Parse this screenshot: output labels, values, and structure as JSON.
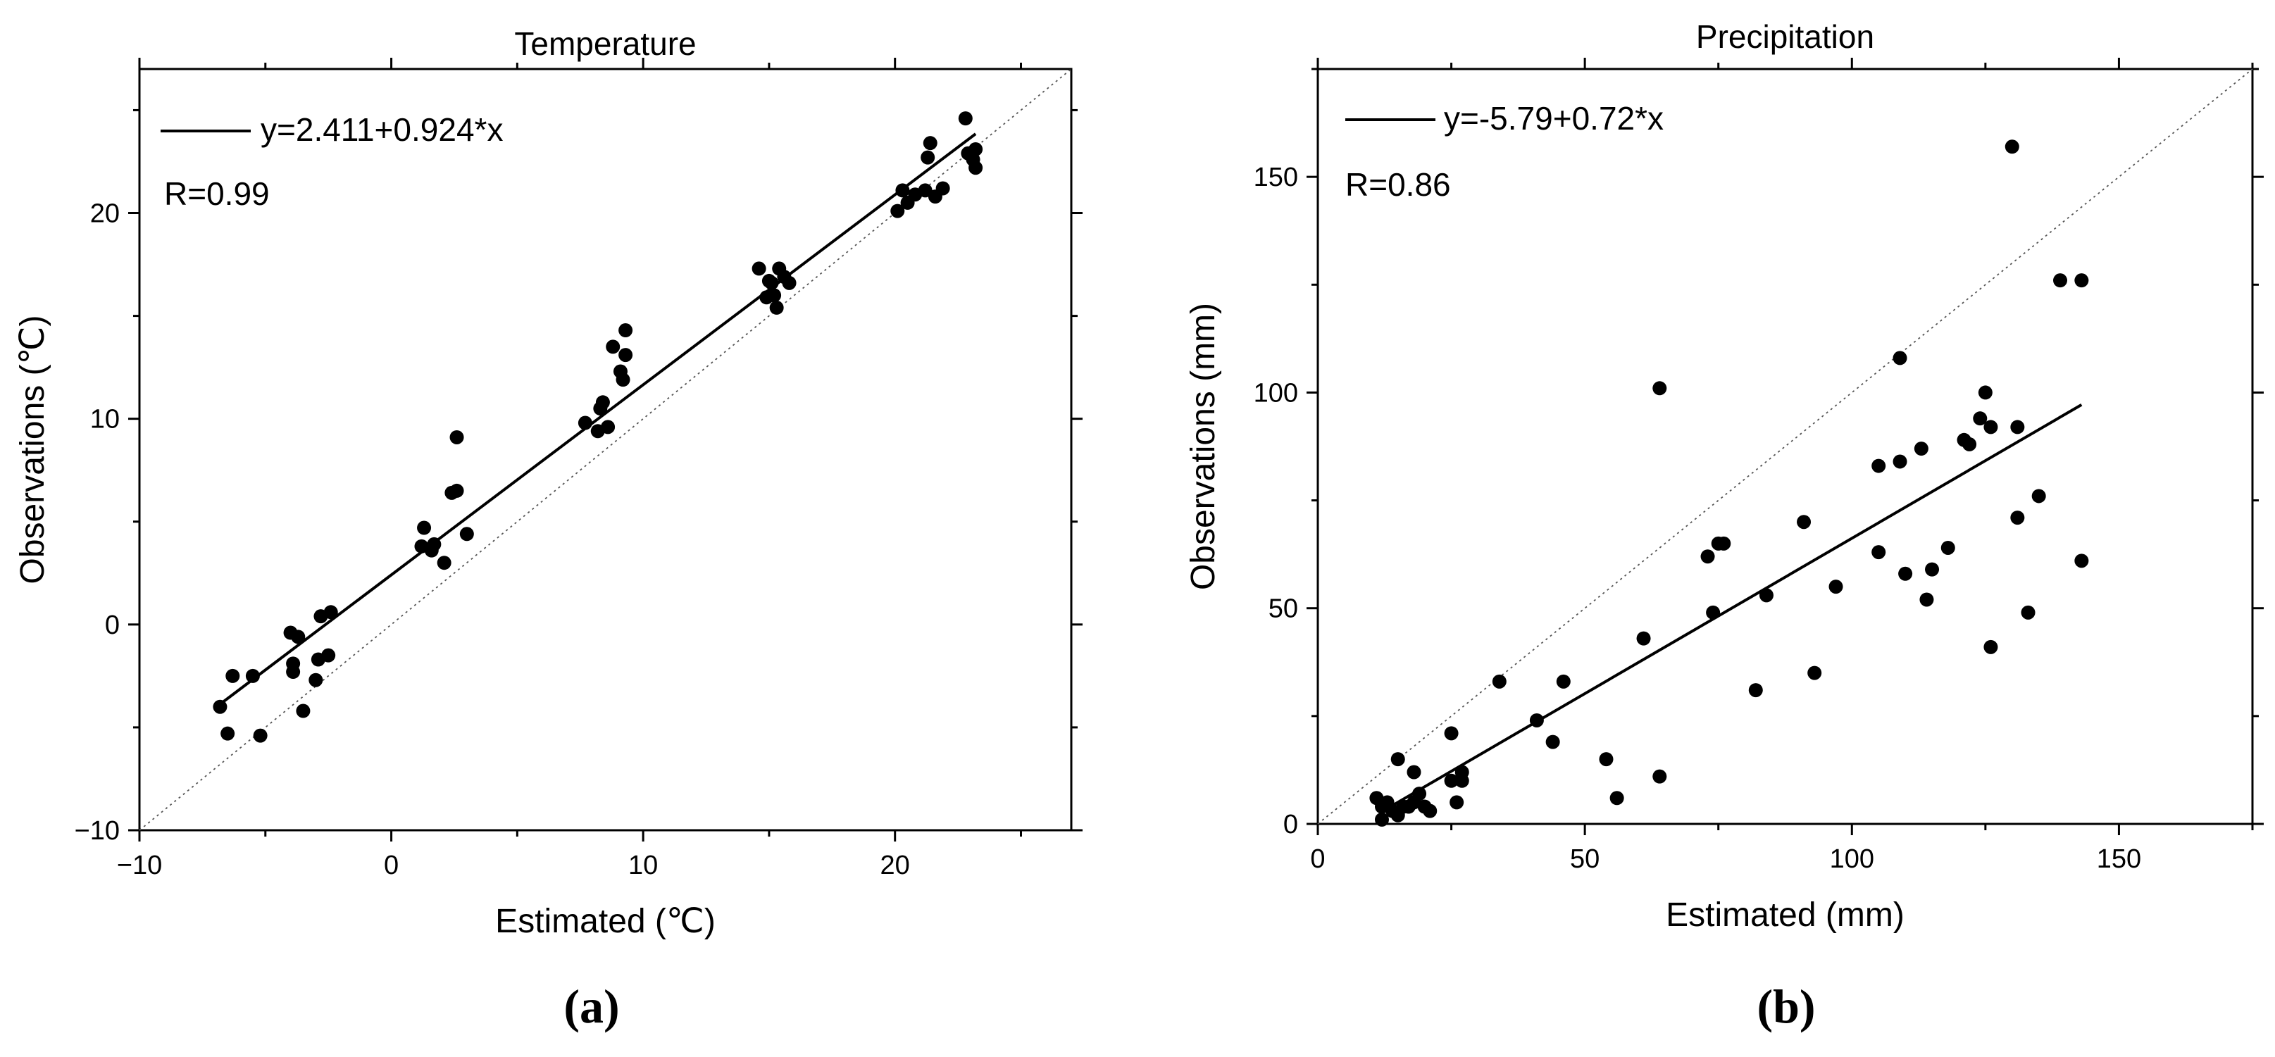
{
  "chart_data": [
    {
      "type": "scatter",
      "panel_label": "(a)",
      "title": "Temperature",
      "xlabel": "Estimated (℃)",
      "ylabel": "Observations (℃)",
      "xlim": [
        -10,
        27
      ],
      "ylim": [
        -10,
        27
      ],
      "xticks": [
        -10,
        0,
        10,
        20
      ],
      "yticks": [
        -10,
        0,
        10,
        20
      ],
      "xtick_labels": [
        "−10",
        "0",
        "10",
        "20"
      ],
      "ytick_labels": [
        "−10",
        "0",
        "10",
        "20"
      ],
      "fit_label": "y=2.411+0.924*x",
      "r_label": "R=0.99",
      "fit": {
        "intercept": 2.411,
        "slope": 0.924,
        "x_range": [
          -6.8,
          23.2
        ]
      },
      "reference_line": "y=x (dotted)",
      "points": [
        [
          -6.8,
          -4.0
        ],
        [
          -6.5,
          -5.3
        ],
        [
          -6.3,
          -2.5
        ],
        [
          -5.5,
          -2.5
        ],
        [
          -5.2,
          -5.4
        ],
        [
          -4.0,
          -0.4
        ],
        [
          -3.9,
          -1.9
        ],
        [
          -3.9,
          -2.3
        ],
        [
          -3.7,
          -0.6
        ],
        [
          -3.5,
          -4.2
        ],
        [
          -3.0,
          -2.7
        ],
        [
          -2.9,
          -1.7
        ],
        [
          -2.8,
          0.4
        ],
        [
          -2.5,
          -1.5
        ],
        [
          -2.4,
          0.6
        ],
        [
          1.2,
          3.8
        ],
        [
          1.3,
          4.7
        ],
        [
          1.6,
          3.6
        ],
        [
          1.7,
          3.9
        ],
        [
          2.1,
          3.0
        ],
        [
          2.4,
          6.4
        ],
        [
          2.6,
          6.5
        ],
        [
          2.6,
          9.1
        ],
        [
          3.0,
          4.4
        ],
        [
          7.7,
          9.8
        ],
        [
          8.2,
          9.4
        ],
        [
          8.3,
          10.5
        ],
        [
          8.4,
          10.8
        ],
        [
          8.6,
          9.6
        ],
        [
          8.8,
          13.5
        ],
        [
          9.1,
          12.3
        ],
        [
          9.2,
          11.9
        ],
        [
          9.3,
          13.1
        ],
        [
          9.3,
          14.3
        ],
        [
          14.6,
          17.3
        ],
        [
          14.9,
          15.9
        ],
        [
          15.0,
          16.7
        ],
        [
          15.1,
          16.6
        ],
        [
          15.2,
          16.0
        ],
        [
          15.3,
          15.4
        ],
        [
          15.4,
          17.3
        ],
        [
          15.6,
          16.9
        ],
        [
          15.8,
          16.6
        ],
        [
          20.1,
          20.1
        ],
        [
          20.3,
          21.1
        ],
        [
          20.5,
          20.5
        ],
        [
          20.8,
          20.9
        ],
        [
          21.2,
          21.1
        ],
        [
          21.3,
          22.7
        ],
        [
          21.4,
          23.4
        ],
        [
          21.6,
          20.8
        ],
        [
          21.9,
          21.2
        ],
        [
          22.8,
          24.6
        ],
        [
          22.9,
          22.9
        ],
        [
          23.1,
          22.6
        ],
        [
          23.2,
          22.2
        ],
        [
          23.2,
          23.1
        ]
      ]
    },
    {
      "type": "scatter",
      "panel_label": "(b)",
      "title": "Precipitation",
      "xlabel": "Estimated (mm)",
      "ylabel": "Observations (mm)",
      "xlim": [
        0,
        175
      ],
      "ylim": [
        0,
        175
      ],
      "xticks": [
        0,
        50,
        100,
        150
      ],
      "yticks": [
        0,
        50,
        100,
        150
      ],
      "xtick_labels": [
        "0",
        "50",
        "100",
        "150"
      ],
      "ytick_labels": [
        "0",
        "50",
        "100",
        "150"
      ],
      "fit_label": "y=-5.79+0.72*x",
      "r_label": "R=0.86",
      "fit": {
        "intercept": -5.79,
        "slope": 0.72,
        "x_range": [
          12,
          143
        ]
      },
      "reference_line": "y=x (dotted)",
      "points": [
        [
          11,
          6
        ],
        [
          12,
          1
        ],
        [
          12,
          4
        ],
        [
          13,
          5
        ],
        [
          14,
          3
        ],
        [
          15,
          15
        ],
        [
          15,
          2
        ],
        [
          16,
          4
        ],
        [
          17,
          4
        ],
        [
          18,
          5
        ],
        [
          18,
          12
        ],
        [
          19,
          7
        ],
        [
          20,
          4
        ],
        [
          21,
          3
        ],
        [
          25,
          10
        ],
        [
          25,
          21
        ],
        [
          26,
          5
        ],
        [
          27,
          10
        ],
        [
          27,
          12
        ],
        [
          34,
          33
        ],
        [
          41,
          24
        ],
        [
          44,
          19
        ],
        [
          46,
          33
        ],
        [
          54,
          15
        ],
        [
          56,
          6
        ],
        [
          61,
          43
        ],
        [
          64,
          11
        ],
        [
          64,
          101
        ],
        [
          73,
          62
        ],
        [
          74,
          49
        ],
        [
          75,
          65
        ],
        [
          76,
          65
        ],
        [
          82,
          31
        ],
        [
          84,
          53
        ],
        [
          91,
          70
        ],
        [
          93,
          35
        ],
        [
          97,
          55
        ],
        [
          105,
          63
        ],
        [
          105,
          83
        ],
        [
          109,
          84
        ],
        [
          109,
          108
        ],
        [
          110,
          58
        ],
        [
          113,
          87
        ],
        [
          114,
          52
        ],
        [
          115,
          59
        ],
        [
          118,
          64
        ],
        [
          121,
          89
        ],
        [
          122,
          88
        ],
        [
          124,
          94
        ],
        [
          125,
          100
        ],
        [
          126,
          92
        ],
        [
          126,
          41
        ],
        [
          130,
          157
        ],
        [
          131,
          92
        ],
        [
          131,
          71
        ],
        [
          133,
          49
        ],
        [
          135,
          76
        ],
        [
          139,
          126
        ],
        [
          143,
          126
        ],
        [
          143,
          61
        ]
      ]
    }
  ]
}
